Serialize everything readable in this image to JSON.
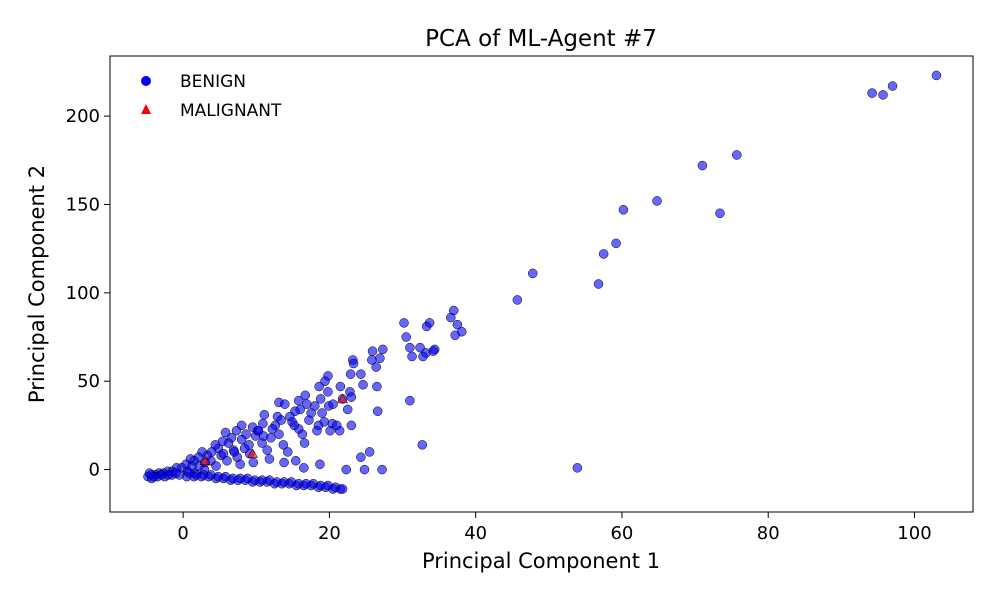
{
  "chart_data": {
    "type": "scatter",
    "title": "PCA of ML-Agent #7",
    "xlabel": "Principal Component 1",
    "ylabel": "Principal Component 2",
    "xlim": [
      -10,
      108
    ],
    "ylim": [
      -24,
      234
    ],
    "xticks": [
      0,
      20,
      40,
      60,
      80,
      100
    ],
    "yticks": [
      0,
      50,
      100,
      150,
      200
    ],
    "grid": false,
    "legend_position": "upper-left",
    "series": [
      {
        "name": "BENIGN",
        "marker": "circle",
        "color": "#0000ff",
        "points": [
          [
            103.0,
            223
          ],
          [
            97.0,
            217
          ],
          [
            95.7,
            212
          ],
          [
            94.2,
            213
          ],
          [
            75.7,
            178
          ],
          [
            71.0,
            172
          ],
          [
            73.4,
            145
          ],
          [
            64.8,
            152
          ],
          [
            60.2,
            147
          ],
          [
            59.2,
            128
          ],
          [
            57.5,
            122
          ],
          [
            56.8,
            105
          ],
          [
            47.8,
            111
          ],
          [
            45.7,
            96
          ],
          [
            53.9,
            1
          ],
          [
            37.0,
            90
          ],
          [
            37.5,
            82
          ],
          [
            38.1,
            78
          ],
          [
            36.6,
            86
          ],
          [
            37.2,
            76
          ],
          [
            33.7,
            83
          ],
          [
            33.3,
            81
          ],
          [
            30.2,
            83
          ],
          [
            30.5,
            75
          ],
          [
            34.4,
            68
          ],
          [
            34.2,
            67
          ],
          [
            31.0,
            69
          ],
          [
            32.4,
            69
          ],
          [
            33.2,
            66
          ],
          [
            32.8,
            64
          ],
          [
            31.3,
            64
          ],
          [
            31.0,
            39
          ],
          [
            32.7,
            14
          ],
          [
            27.3,
            68
          ],
          [
            26.9,
            63
          ],
          [
            25.9,
            67
          ],
          [
            25.8,
            62
          ],
          [
            26.4,
            58
          ],
          [
            26.5,
            47
          ],
          [
            26.6,
            33
          ],
          [
            27.2,
            0
          ],
          [
            25.5,
            10
          ],
          [
            24.6,
            48
          ],
          [
            24.3,
            54
          ],
          [
            23.2,
            62
          ],
          [
            23.3,
            60
          ],
          [
            22.9,
            54
          ],
          [
            22.8,
            44
          ],
          [
            23.0,
            41
          ],
          [
            22.5,
            34
          ],
          [
            21.8,
            40
          ],
          [
            21.5,
            47
          ],
          [
            21.4,
            22
          ],
          [
            23.0,
            25
          ],
          [
            24.3,
            7
          ],
          [
            24.8,
            0
          ],
          [
            22.3,
            0
          ],
          [
            19.8,
            53
          ],
          [
            19.4,
            50
          ],
          [
            18.6,
            47
          ],
          [
            19.8,
            44
          ],
          [
            19.9,
            36
          ],
          [
            18.8,
            40
          ],
          [
            18.0,
            36
          ],
          [
            19.3,
            27
          ],
          [
            20.1,
            22
          ],
          [
            20.4,
            26
          ],
          [
            21.0,
            25
          ],
          [
            18.5,
            25
          ],
          [
            18.3,
            22
          ],
          [
            18.7,
            3
          ],
          [
            16.7,
            42
          ],
          [
            16.9,
            37
          ],
          [
            15.8,
            39
          ],
          [
            16.0,
            34
          ],
          [
            15.3,
            33
          ],
          [
            14.9,
            27
          ],
          [
            15.8,
            23
          ],
          [
            16.3,
            20
          ],
          [
            16.6,
            15
          ],
          [
            15.4,
            5
          ],
          [
            16.5,
            1
          ],
          [
            13.1,
            38
          ],
          [
            13.9,
            37
          ],
          [
            12.9,
            30
          ],
          [
            13.4,
            28
          ],
          [
            12.6,
            25
          ],
          [
            13.1,
            20
          ],
          [
            12.0,
            18
          ],
          [
            13.7,
            14
          ],
          [
            14.3,
            10
          ],
          [
            13.8,
            4
          ],
          [
            11.1,
            31
          ],
          [
            10.9,
            26
          ],
          [
            10.2,
            22
          ],
          [
            9.9,
            19
          ],
          [
            10.8,
            15
          ],
          [
            11.5,
            11
          ],
          [
            11.8,
            6
          ],
          [
            9.5,
            24
          ],
          [
            8.6,
            20
          ],
          [
            8.0,
            17
          ],
          [
            8.4,
            12
          ],
          [
            9.1,
            9
          ],
          [
            9.6,
            4
          ],
          [
            7.3,
            22
          ],
          [
            6.6,
            18
          ],
          [
            6.2,
            15
          ],
          [
            6.9,
            11
          ],
          [
            7.4,
            7
          ],
          [
            7.8,
            3
          ],
          [
            5.8,
            21
          ],
          [
            5.4,
            16
          ],
          [
            4.8,
            12
          ],
          [
            5.2,
            8
          ],
          [
            6.0,
            5
          ],
          [
            4.4,
            14
          ],
          [
            3.9,
            10
          ],
          [
            3.3,
            8
          ],
          [
            3.8,
            5
          ],
          [
            4.5,
            2
          ],
          [
            2.6,
            10
          ],
          [
            2.1,
            7
          ],
          [
            1.5,
            5
          ],
          [
            2.2,
            2
          ],
          [
            2.9,
            0
          ],
          [
            1.0,
            6
          ],
          [
            0.4,
            3
          ],
          [
            -0.2,
            1
          ],
          [
            0.6,
            -1
          ],
          [
            1.6,
            -2
          ],
          [
            -0.9,
            1
          ],
          [
            -1.5,
            -1
          ],
          [
            -2.1,
            -1
          ],
          [
            -2.7,
            -2
          ],
          [
            -3.3,
            -2
          ],
          [
            -3.8,
            -3
          ],
          [
            -4.4,
            -3
          ],
          [
            -4.8,
            -4
          ],
          [
            -4.3,
            -5
          ],
          [
            -3.5,
            -4
          ],
          [
            -2.5,
            -4
          ],
          [
            -1.5,
            -3
          ],
          [
            -0.5,
            -3
          ],
          [
            0.5,
            -4
          ],
          [
            1.5,
            -4
          ],
          [
            2.5,
            -4
          ],
          [
            3.5,
            -4
          ],
          [
            4.5,
            -5
          ],
          [
            5.5,
            -5
          ],
          [
            6.5,
            -6
          ],
          [
            7.5,
            -6
          ],
          [
            8.5,
            -6
          ],
          [
            9.5,
            -7
          ],
          [
            10.5,
            -7
          ],
          [
            11.5,
            -7
          ],
          [
            12.5,
            -8
          ],
          [
            13.5,
            -8
          ],
          [
            14.5,
            -8
          ],
          [
            15.5,
            -9
          ],
          [
            16.5,
            -9
          ],
          [
            17.5,
            -9
          ],
          [
            18.5,
            -10
          ],
          [
            19.5,
            -10
          ],
          [
            20.5,
            -11
          ],
          [
            21.5,
            -11
          ],
          [
            21.8,
            -11
          ],
          [
            20.8,
            -10
          ],
          [
            19.8,
            -9
          ],
          [
            18.8,
            -9
          ],
          [
            17.8,
            -8
          ],
          [
            16.8,
            -8
          ],
          [
            15.8,
            -8
          ],
          [
            14.8,
            -7
          ],
          [
            13.8,
            -7
          ],
          [
            12.8,
            -7
          ],
          [
            11.8,
            -6
          ],
          [
            10.8,
            -6
          ],
          [
            9.8,
            -6
          ],
          [
            8.8,
            -5
          ],
          [
            7.8,
            -5
          ],
          [
            6.8,
            -5
          ],
          [
            5.8,
            -4
          ],
          [
            4.8,
            -4
          ],
          [
            3.8,
            -3
          ],
          [
            2.8,
            -3
          ],
          [
            1.8,
            -3
          ],
          [
            0.8,
            -2
          ],
          [
            -1.0,
            -2
          ],
          [
            -2.0,
            -3
          ],
          [
            -3.0,
            -3
          ],
          [
            -4.0,
            -4
          ],
          [
            -4.6,
            -2
          ],
          [
            8.0,
            25
          ],
          [
            10.3,
            22
          ],
          [
            12.2,
            23
          ],
          [
            14.6,
            30
          ],
          [
            17.2,
            28
          ],
          [
            19.0,
            32
          ],
          [
            20.5,
            37
          ],
          [
            17.5,
            32
          ],
          [
            15.2,
            25
          ],
          [
            11.0,
            19
          ],
          [
            9.0,
            14
          ],
          [
            7.0,
            10
          ],
          [
            5.5,
            9
          ],
          [
            3.0,
            4
          ],
          [
            1.2,
            2
          ]
        ]
      },
      {
        "name": "MALIGNANT",
        "marker": "triangle",
        "color": "#ff0000",
        "points": [
          [
            21.8,
            40
          ],
          [
            3.0,
            5
          ],
          [
            9.5,
            9
          ]
        ]
      }
    ]
  }
}
